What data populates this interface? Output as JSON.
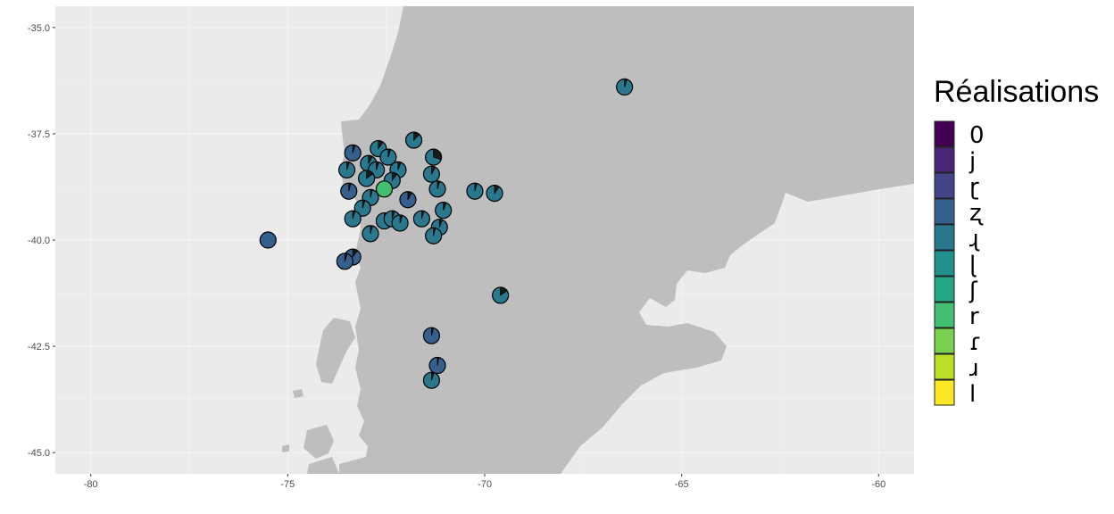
{
  "chart_data": {
    "type": "scatter",
    "subtype": "map-with-pie-markers",
    "xlim": [
      -80.9,
      -59.1
    ],
    "ylim": [
      -45.5,
      -34.5
    ],
    "xticks": [
      -80,
      -75,
      -70,
      -65,
      -60
    ],
    "yticks": [
      -35.0,
      -37.5,
      -40.0,
      -42.5,
      -45.0
    ],
    "xtick_labels": [
      "-80",
      "-75",
      "-70",
      "-65",
      "-60"
    ],
    "ytick_labels": [
      "-35.0",
      "-37.5",
      "-40.0",
      "-42.5",
      "-45.0"
    ],
    "grid": true,
    "legend": {
      "title": "Réalisations",
      "position": "right",
      "entries": [
        {
          "label": "0",
          "color": "#440154"
        },
        {
          "label": "j",
          "color": "#482576"
        },
        {
          "label": "ɽ",
          "color": "#414487"
        },
        {
          "label": "ʐ",
          "color": "#35608D"
        },
        {
          "label": "ɻ",
          "color": "#2A788E"
        },
        {
          "label": "ɭ",
          "color": "#21908C"
        },
        {
          "label": "ʃ",
          "color": "#22A884"
        },
        {
          "label": "r",
          "color": "#43BF71"
        },
        {
          "label": "ɾ",
          "color": "#7AD151"
        },
        {
          "label": "ɹ",
          "color": "#BBDF27"
        },
        {
          "label": "l",
          "color": "#FDE725"
        }
      ]
    },
    "points": [
      {
        "lon": -66.45,
        "lat": -36.4,
        "main": "#2A788E",
        "slice": 0.05
      },
      {
        "lon": -71.8,
        "lat": -37.65,
        "main": "#2A788E",
        "slice": 0.12
      },
      {
        "lon": -73.35,
        "lat": -37.95,
        "main": "#35608D",
        "slice": 0.05
      },
      {
        "lon": -72.7,
        "lat": -37.85,
        "main": "#2A788E",
        "slice": 0.1
      },
      {
        "lon": -72.45,
        "lat": -38.05,
        "main": "#2A788E",
        "slice": 0.05
      },
      {
        "lon": -71.3,
        "lat": -38.05,
        "main": "#2A788E",
        "slice": 0.3
      },
      {
        "lon": -72.95,
        "lat": -38.2,
        "main": "#2A788E",
        "slice": 0.08
      },
      {
        "lon": -73.5,
        "lat": -38.35,
        "main": "#2A788E",
        "slice": 0.05
      },
      {
        "lon": -72.75,
        "lat": -38.35,
        "main": "#2A788E",
        "slice": 0.05
      },
      {
        "lon": -72.2,
        "lat": -38.35,
        "main": "#2A788E",
        "slice": 0.06
      },
      {
        "lon": -71.35,
        "lat": -38.45,
        "main": "#2A788E",
        "slice": 0.08
      },
      {
        "lon": -73.0,
        "lat": -38.55,
        "main": "#2A788E",
        "slice": 0.15
      },
      {
        "lon": -72.35,
        "lat": -38.6,
        "main": "#2A788E",
        "slice": 0.1
      },
      {
        "lon": -73.45,
        "lat": -38.85,
        "main": "#35608D",
        "slice": 0.04
      },
      {
        "lon": -72.55,
        "lat": -38.8,
        "main": "#43BF71",
        "slice": 0.0
      },
      {
        "lon": -71.2,
        "lat": -38.8,
        "main": "#2A788E",
        "slice": 0.05
      },
      {
        "lon": -70.25,
        "lat": -38.85,
        "main": "#2A788E",
        "slice": 0.04
      },
      {
        "lon": -69.75,
        "lat": -38.9,
        "main": "#2A788E",
        "slice": 0.1
      },
      {
        "lon": -72.9,
        "lat": -39.0,
        "main": "#2A788E",
        "slice": 0.04
      },
      {
        "lon": -71.95,
        "lat": -39.05,
        "main": "#35608D",
        "slice": 0.08
      },
      {
        "lon": -73.1,
        "lat": -39.25,
        "main": "#2A788E",
        "slice": 0.05
      },
      {
        "lon": -71.05,
        "lat": -39.3,
        "main": "#2A788E",
        "slice": 0.06
      },
      {
        "lon": -73.35,
        "lat": -39.5,
        "main": "#2A788E",
        "slice": 0.05
      },
      {
        "lon": -72.55,
        "lat": -39.55,
        "main": "#2A788E",
        "slice": 0.04
      },
      {
        "lon": -72.35,
        "lat": -39.5,
        "main": "#2A788E",
        "slice": 0.05
      },
      {
        "lon": -72.15,
        "lat": -39.6,
        "main": "#2A788E",
        "slice": 0.05
      },
      {
        "lon": -71.6,
        "lat": -39.5,
        "main": "#2A788E",
        "slice": 0.05
      },
      {
        "lon": -71.15,
        "lat": -39.7,
        "main": "#2A788E",
        "slice": 0.06
      },
      {
        "lon": -72.9,
        "lat": -39.85,
        "main": "#2A788E",
        "slice": 0.04
      },
      {
        "lon": -71.3,
        "lat": -39.9,
        "main": "#2A788E",
        "slice": 0.04
      },
      {
        "lon": -75.5,
        "lat": -40.0,
        "main": "#35608D",
        "slice": 0.0
      },
      {
        "lon": -73.35,
        "lat": -40.4,
        "main": "#35608D",
        "slice": 0.1
      },
      {
        "lon": -73.55,
        "lat": -40.5,
        "main": "#35608D",
        "slice": 0.05
      },
      {
        "lon": -69.6,
        "lat": -41.3,
        "main": "#2A788E",
        "slice": 0.15
      },
      {
        "lon": -71.35,
        "lat": -42.25,
        "main": "#35608D",
        "slice": 0.04
      },
      {
        "lon": -71.2,
        "lat": -42.95,
        "main": "#35608D",
        "slice": 0.03
      },
      {
        "lon": -71.35,
        "lat": -43.3,
        "main": "#2A788E",
        "slice": 0.05
      }
    ]
  },
  "colors": {
    "panel": "#EBEBEB",
    "grid": "#F5F5F5",
    "land": "#BEBEBE",
    "outline": "#000000",
    "slice": "#1A1A1A"
  }
}
